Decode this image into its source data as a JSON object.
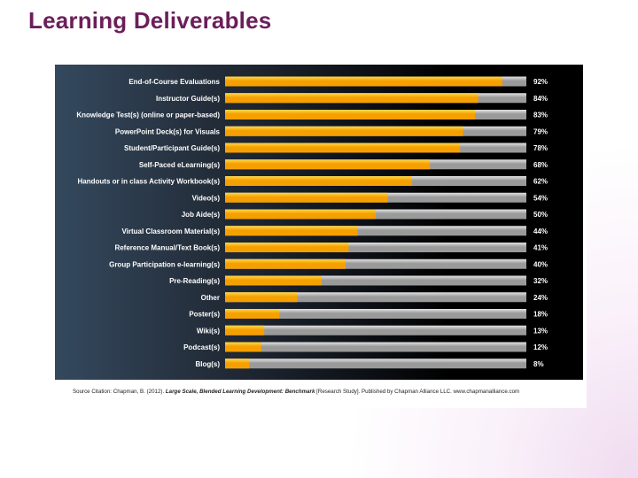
{
  "slide": {
    "title": "Learning Deliverables"
  },
  "chart_data": {
    "type": "bar",
    "orientation": "horizontal",
    "categories": [
      "End-of-Course Evaluations",
      "Instructor Guide(s)",
      "Knowledge Test(s) (online or paper-based)",
      "PowerPoint Deck(s) for Visuals",
      "Student/Participant Guide(s)",
      "Self-Paced eLearning(s)",
      "Handouts or in class Activity Workbook(s)",
      "Video(s)",
      "Job Aide(s)",
      "Virtual Classroom Material(s)",
      "Reference Manual/Text Book(s)",
      "Group Participation e-learning(s)",
      "Pre-Reading(s)",
      "Other",
      "Poster(s)",
      "Wiki(s)",
      "Podcast(s)",
      "Blog(s)"
    ],
    "values": [
      92,
      84,
      83,
      79,
      78,
      68,
      62,
      54,
      50,
      44,
      41,
      40,
      32,
      24,
      18,
      13,
      12,
      8
    ],
    "value_labels": [
      "92%",
      "84%",
      "83%",
      "79%",
      "78%",
      "68%",
      "62%",
      "54%",
      "50%",
      "44%",
      "41%",
      "40%",
      "32%",
      "24%",
      "18%",
      "13%",
      "12%",
      "8%"
    ],
    "xlim": [
      0,
      100
    ],
    "title": "",
    "xlabel": "",
    "ylabel": "",
    "colors": {
      "fill": "#f5a000",
      "fill_highlight": "#ffd84a",
      "track": "#9a9a9a",
      "track_highlight": "#e2e2e2",
      "label": "#ffffff"
    }
  },
  "source": {
    "prefix": "Source Citation: Chapman, B. (2012). ",
    "work": "Large Scale, Blended Learning Development: Benchmark",
    "suffix": " [Research Study]. Published by Chapman Alliance LLC. www.chapmanalliance.com"
  }
}
